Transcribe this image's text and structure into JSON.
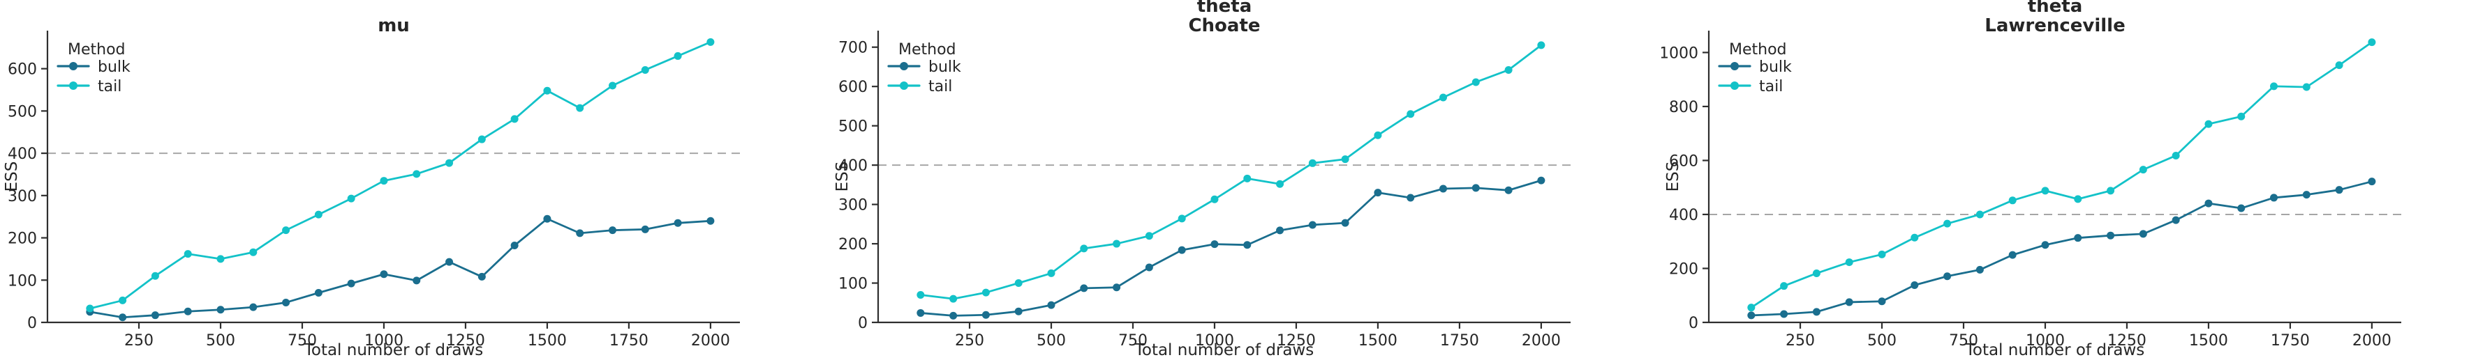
{
  "figure": {
    "x_label": "Total number of draws",
    "y_label": "ESS",
    "legend_title": "Method",
    "reference_line_value": 400,
    "colors": {
      "bulk": "#1a6e8e",
      "tail": "#13c2c8",
      "reference_line": "#a6a6a6",
      "axis": "#2e2e2e",
      "text": "#262626"
    }
  },
  "chart_data": [
    {
      "type": "line",
      "title_lines": [
        "mu"
      ],
      "xlabel": "Total number of draws",
      "ylabel": "ESS",
      "legend_title": "Method",
      "legend_position": "upper-left",
      "grid": false,
      "reference_y": 400,
      "x": [
        100,
        200,
        300,
        400,
        500,
        600,
        700,
        800,
        900,
        1000,
        1100,
        1200,
        1300,
        1400,
        1500,
        1600,
        1700,
        1800,
        1900,
        2000
      ],
      "series": [
        {
          "name": "bulk",
          "values": [
            25,
            12,
            17,
            26,
            30,
            36,
            47,
            70,
            92,
            114,
            99,
            143,
            108,
            182,
            245,
            211,
            218,
            220,
            235,
            240
          ]
        },
        {
          "name": "tail",
          "values": [
            33,
            52,
            110,
            162,
            150,
            166,
            218,
            255,
            293,
            335,
            351,
            377,
            433,
            481,
            548,
            507,
            560,
            597,
            630,
            663
          ]
        }
      ],
      "x_ticks": [
        250,
        500,
        750,
        1000,
        1250,
        1500,
        1750,
        2000
      ],
      "y_ticks": [
        0,
        100,
        200,
        300,
        400,
        500,
        600
      ],
      "xlim": [
        -30,
        2090
      ],
      "ylim": [
        0,
        690
      ]
    },
    {
      "type": "line",
      "title_lines": [
        "theta",
        "Choate"
      ],
      "xlabel": "Total number of draws",
      "ylabel": "ESS",
      "legend_title": "Method",
      "legend_position": "upper-left",
      "grid": false,
      "reference_y": 400,
      "x": [
        100,
        200,
        300,
        400,
        500,
        600,
        700,
        800,
        900,
        1000,
        1100,
        1200,
        1300,
        1400,
        1500,
        1600,
        1700,
        1800,
        1900,
        2000
      ],
      "series": [
        {
          "name": "bulk",
          "values": [
            24,
            17,
            19,
            28,
            44,
            87,
            89,
            140,
            184,
            199,
            197,
            234,
            248,
            253,
            330,
            317,
            340,
            342,
            336,
            361
          ]
        },
        {
          "name": "tail",
          "values": [
            70,
            60,
            76,
            100,
            125,
            188,
            200,
            220,
            264,
            313,
            366,
            352,
            405,
            415,
            476,
            530,
            572,
            611,
            642,
            705
          ]
        }
      ],
      "x_ticks": [
        250,
        500,
        750,
        1000,
        1250,
        1500,
        1750,
        2000
      ],
      "y_ticks": [
        0,
        100,
        200,
        300,
        400,
        500,
        600,
        700
      ],
      "xlim": [
        -30,
        2090
      ],
      "ylim": [
        0,
        742
      ]
    },
    {
      "type": "line",
      "title_lines": [
        "theta",
        "Lawrenceville"
      ],
      "xlabel": "Total number of draws",
      "ylabel": "ESS",
      "legend_title": "Method",
      "legend_position": "upper-left",
      "grid": false,
      "reference_y": 400,
      "x": [
        100,
        200,
        300,
        400,
        500,
        600,
        700,
        800,
        900,
        1000,
        1100,
        1200,
        1300,
        1400,
        1500,
        1600,
        1700,
        1800,
        1900,
        2000
      ],
      "series": [
        {
          "name": "bulk",
          "values": [
            26,
            31,
            39,
            75,
            78,
            138,
            171,
            195,
            250,
            287,
            313,
            322,
            328,
            379,
            441,
            423,
            462,
            473,
            491,
            522
          ]
        },
        {
          "name": "tail",
          "values": [
            55,
            135,
            182,
            223,
            252,
            314,
            366,
            400,
            452,
            488,
            457,
            488,
            566,
            618,
            735,
            763,
            875,
            872,
            953,
            1038
          ]
        }
      ],
      "x_ticks": [
        250,
        500,
        750,
        1000,
        1250,
        1500,
        1750,
        2000
      ],
      "y_ticks": [
        0,
        200,
        400,
        600,
        800,
        1000
      ],
      "xlim": [
        -30,
        2090
      ],
      "ylim": [
        0,
        1081
      ]
    }
  ]
}
